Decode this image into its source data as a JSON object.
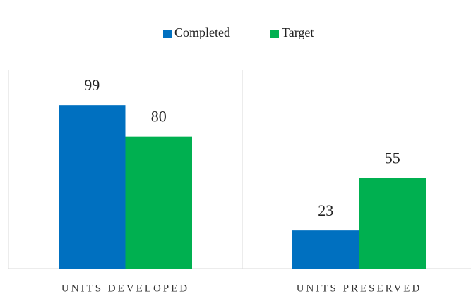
{
  "chart_data": {
    "type": "bar",
    "categories": [
      "UNITS DEVELOPED",
      "UNITS PRESERVED"
    ],
    "series": [
      {
        "name": "Completed",
        "color": "#0070c0",
        "values": [
          99,
          23
        ]
      },
      {
        "name": "Target",
        "color": "#00b050",
        "values": [
          80,
          55
        ]
      }
    ],
    "ylim": [
      0,
      120
    ],
    "legend": "top"
  }
}
